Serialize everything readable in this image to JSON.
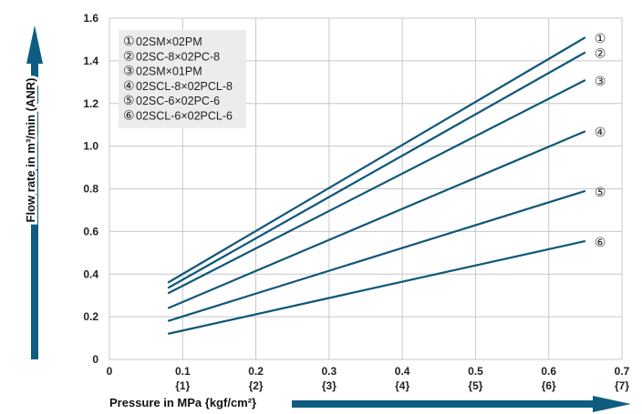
{
  "colors": {
    "line": "#0e5779",
    "arrow": "#0e5d80",
    "grid": "#c8c8c8",
    "legend_bg": "#ececec"
  },
  "chart_data": {
    "type": "line",
    "xlabel": "Pressure in MPa {kgf/cm²}",
    "ylabel": "Flow rate in m³/min (ANR)",
    "xlim": [
      0,
      0.7
    ],
    "ylim": [
      0,
      1.6
    ],
    "grid": true,
    "legend_position": "top-left",
    "x_ticks": [
      {
        "value": "0",
        "sub": ""
      },
      {
        "value": "0.1",
        "sub": "{1}"
      },
      {
        "value": "0.2",
        "sub": "{2}"
      },
      {
        "value": "0.3",
        "sub": "{3}"
      },
      {
        "value": "0.4",
        "sub": "{4}"
      },
      {
        "value": "0.5",
        "sub": "{5}"
      },
      {
        "value": "0.6",
        "sub": "{6}"
      },
      {
        "value": "0.7",
        "sub": "{7}"
      }
    ],
    "y_ticks": [
      "0",
      "0.2",
      "0.4",
      "0.6",
      "0.8",
      "1.0",
      "1.2",
      "1.4",
      "1.6"
    ],
    "series": [
      {
        "marker": "①",
        "name": "02SM×02PM",
        "x": [
          0.08,
          0.65
        ],
        "y": [
          0.36,
          1.51
        ]
      },
      {
        "marker": "②",
        "name": "02SC-8×02PC-8",
        "x": [
          0.08,
          0.65
        ],
        "y": [
          0.335,
          1.44
        ]
      },
      {
        "marker": "③",
        "name": "02SM×01PM",
        "x": [
          0.08,
          0.65
        ],
        "y": [
          0.31,
          1.31
        ]
      },
      {
        "marker": "④",
        "name": "02SCL-8×02PCL-8",
        "x": [
          0.08,
          0.65
        ],
        "y": [
          0.24,
          1.07
        ]
      },
      {
        "marker": "⑤",
        "name": "02SC-6×02PC-6",
        "x": [
          0.08,
          0.65
        ],
        "y": [
          0.18,
          0.79
        ]
      },
      {
        "marker": "⑥",
        "name": "02SCL-6×02PCL-6",
        "x": [
          0.08,
          0.65
        ],
        "y": [
          0.12,
          0.555
        ]
      }
    ]
  }
}
